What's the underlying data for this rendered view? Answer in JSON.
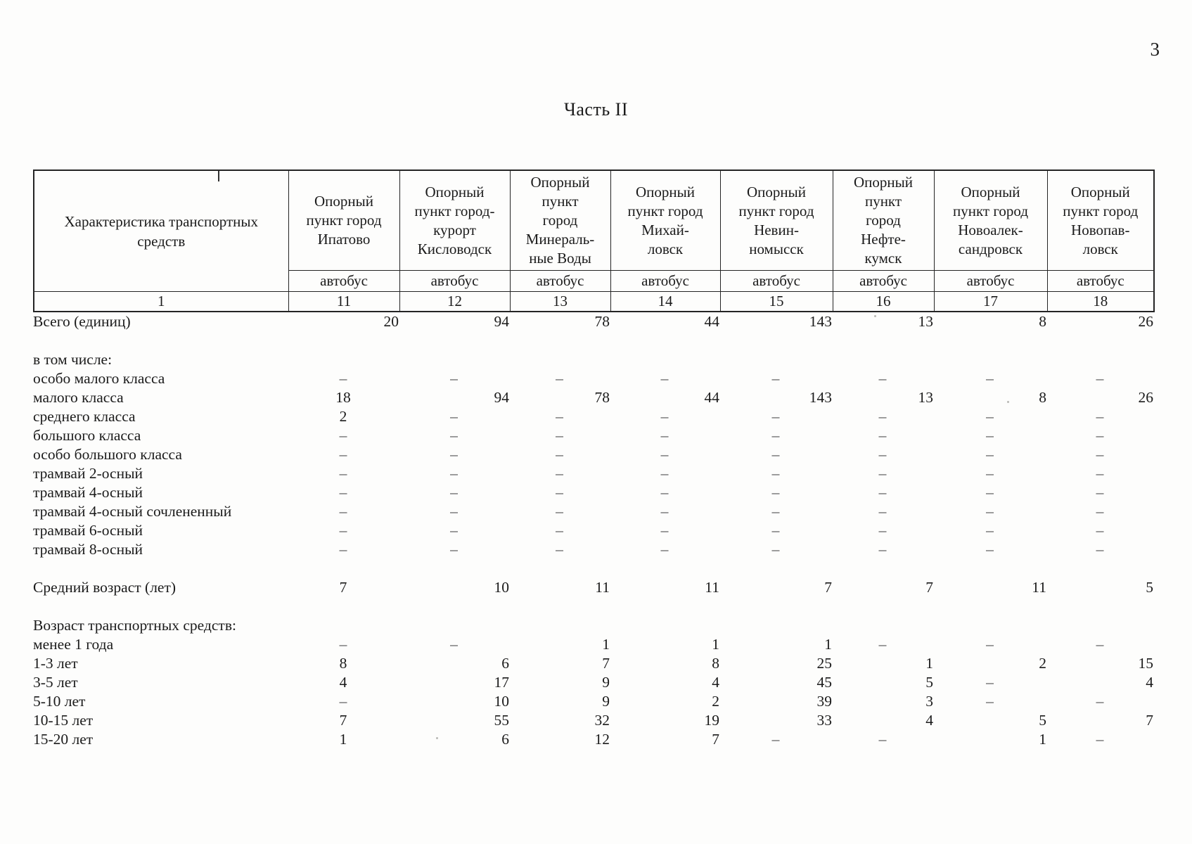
{
  "page": {
    "number": "3",
    "title": "Часть II"
  },
  "table": {
    "header": {
      "label_col": "Характеристика транспортных\nсредств",
      "label_col_num": "1",
      "columns": [
        {
          "title": "Опорный\nпункт город\nИпатово",
          "subtitle": "автобус",
          "num": "11"
        },
        {
          "title": "Опорный\nпункт город-\nкурорт\nКисловодск",
          "subtitle": "автобус",
          "num": "12"
        },
        {
          "title": "Опорный\nпункт\nгород\nМинераль-\nные Воды",
          "subtitle": "автобус",
          "num": "13"
        },
        {
          "title": "Опорный\nпункт город\nМихай-\nловск",
          "subtitle": "автобус",
          "num": "14"
        },
        {
          "title": "Опорный\nпункт город\nНевин-\nномысск",
          "subtitle": "автобус",
          "num": "15"
        },
        {
          "title": "Опорный\nпункт\nгород\nНефте-\nкумск",
          "subtitle": "автобус",
          "num": "16"
        },
        {
          "title": "Опорный\nпункт город\nНовоалек-\nсандровск",
          "subtitle": "автобус",
          "num": "17"
        },
        {
          "title": "Опорный\nпункт город\nНовопав-\nловск",
          "subtitle": "автобус",
          "num": "18"
        }
      ]
    },
    "rows": [
      {
        "type": "total",
        "label": "Всего (единиц)",
        "cells": [
          "20",
          "94",
          "78",
          "44",
          "143",
          "13",
          "8",
          "26"
        ]
      },
      {
        "type": "spacer"
      },
      {
        "type": "group",
        "label": "в том числе:",
        "cells": [
          "",
          "",
          "",
          "",
          "",
          "",
          "",
          ""
        ]
      },
      {
        "type": "data",
        "label": "особо малого класса",
        "cells": [
          "–",
          "–",
          "–",
          "–",
          "–",
          "–",
          "–",
          "–"
        ]
      },
      {
        "type": "data",
        "label": "малого класса",
        "cells": [
          "18",
          "94",
          "78",
          "44",
          "143",
          "13",
          "8",
          "26"
        ]
      },
      {
        "type": "data",
        "label": "среднего класса",
        "cells": [
          "2",
          "–",
          "–",
          "–",
          "–",
          "–",
          "–",
          "–"
        ]
      },
      {
        "type": "data",
        "label": "большого класса",
        "cells": [
          "–",
          "–",
          "–",
          "–",
          "–",
          "–",
          "–",
          "–"
        ]
      },
      {
        "type": "data",
        "label": "особо большого класса",
        "cells": [
          "–",
          "–",
          "–",
          "–",
          "–",
          "–",
          "–",
          "–"
        ]
      },
      {
        "type": "data",
        "label": "трамвай 2-осный",
        "cells": [
          "–",
          "–",
          "–",
          "–",
          "–",
          "–",
          "–",
          "–"
        ]
      },
      {
        "type": "data",
        "label": "трамвай 4-осный",
        "cells": [
          "–",
          "–",
          "–",
          "–",
          "–",
          "–",
          "–",
          "–"
        ]
      },
      {
        "type": "data",
        "label": "трамвай 4-осный сочлененный",
        "cells": [
          "–",
          "–",
          "–",
          "–",
          "–",
          "–",
          "–",
          "–"
        ]
      },
      {
        "type": "data",
        "label": "трамвай 6-осный",
        "cells": [
          "–",
          "–",
          "–",
          "–",
          "–",
          "–",
          "–",
          "–"
        ]
      },
      {
        "type": "data",
        "label": "трамвай 8-осный",
        "cells": [
          "–",
          "–",
          "–",
          "–",
          "–",
          "–",
          "–",
          "–"
        ]
      },
      {
        "type": "spacer"
      },
      {
        "type": "data",
        "label": "Средний возраст (лет)",
        "cells": [
          "7",
          "10",
          "11",
          "11",
          "7",
          "7",
          "11",
          "5"
        ]
      },
      {
        "type": "spacer"
      },
      {
        "type": "group",
        "label": "Возраст транспортных средств:",
        "cells": [
          "",
          "",
          "",
          "",
          "",
          "",
          "",
          ""
        ]
      },
      {
        "type": "data",
        "label": "менее 1 года",
        "cells": [
          "–",
          "–",
          "1",
          "1",
          "1",
          "–",
          "–",
          "–"
        ]
      },
      {
        "type": "data",
        "label": "1-3 лет",
        "cells": [
          "8",
          "6",
          "7",
          "8",
          "25",
          "1",
          "2",
          "15"
        ]
      },
      {
        "type": "data",
        "label": "3-5 лет",
        "cells": [
          "4",
          "17",
          "9",
          "4",
          "45",
          "5",
          "–",
          "4"
        ]
      },
      {
        "type": "data",
        "label": "5-10 лет",
        "cells": [
          "–",
          "10",
          "9",
          "2",
          "39",
          "3",
          "–",
          "–"
        ]
      },
      {
        "type": "data",
        "label": "10-15 лет",
        "cells": [
          "7",
          "55",
          "32",
          "19",
          "33",
          "4",
          "5",
          "7"
        ]
      },
      {
        "type": "data",
        "label": "15-20 лет",
        "cells": [
          "1",
          "6",
          "12",
          "7",
          "–",
          "–",
          "1",
          "–"
        ]
      }
    ]
  }
}
